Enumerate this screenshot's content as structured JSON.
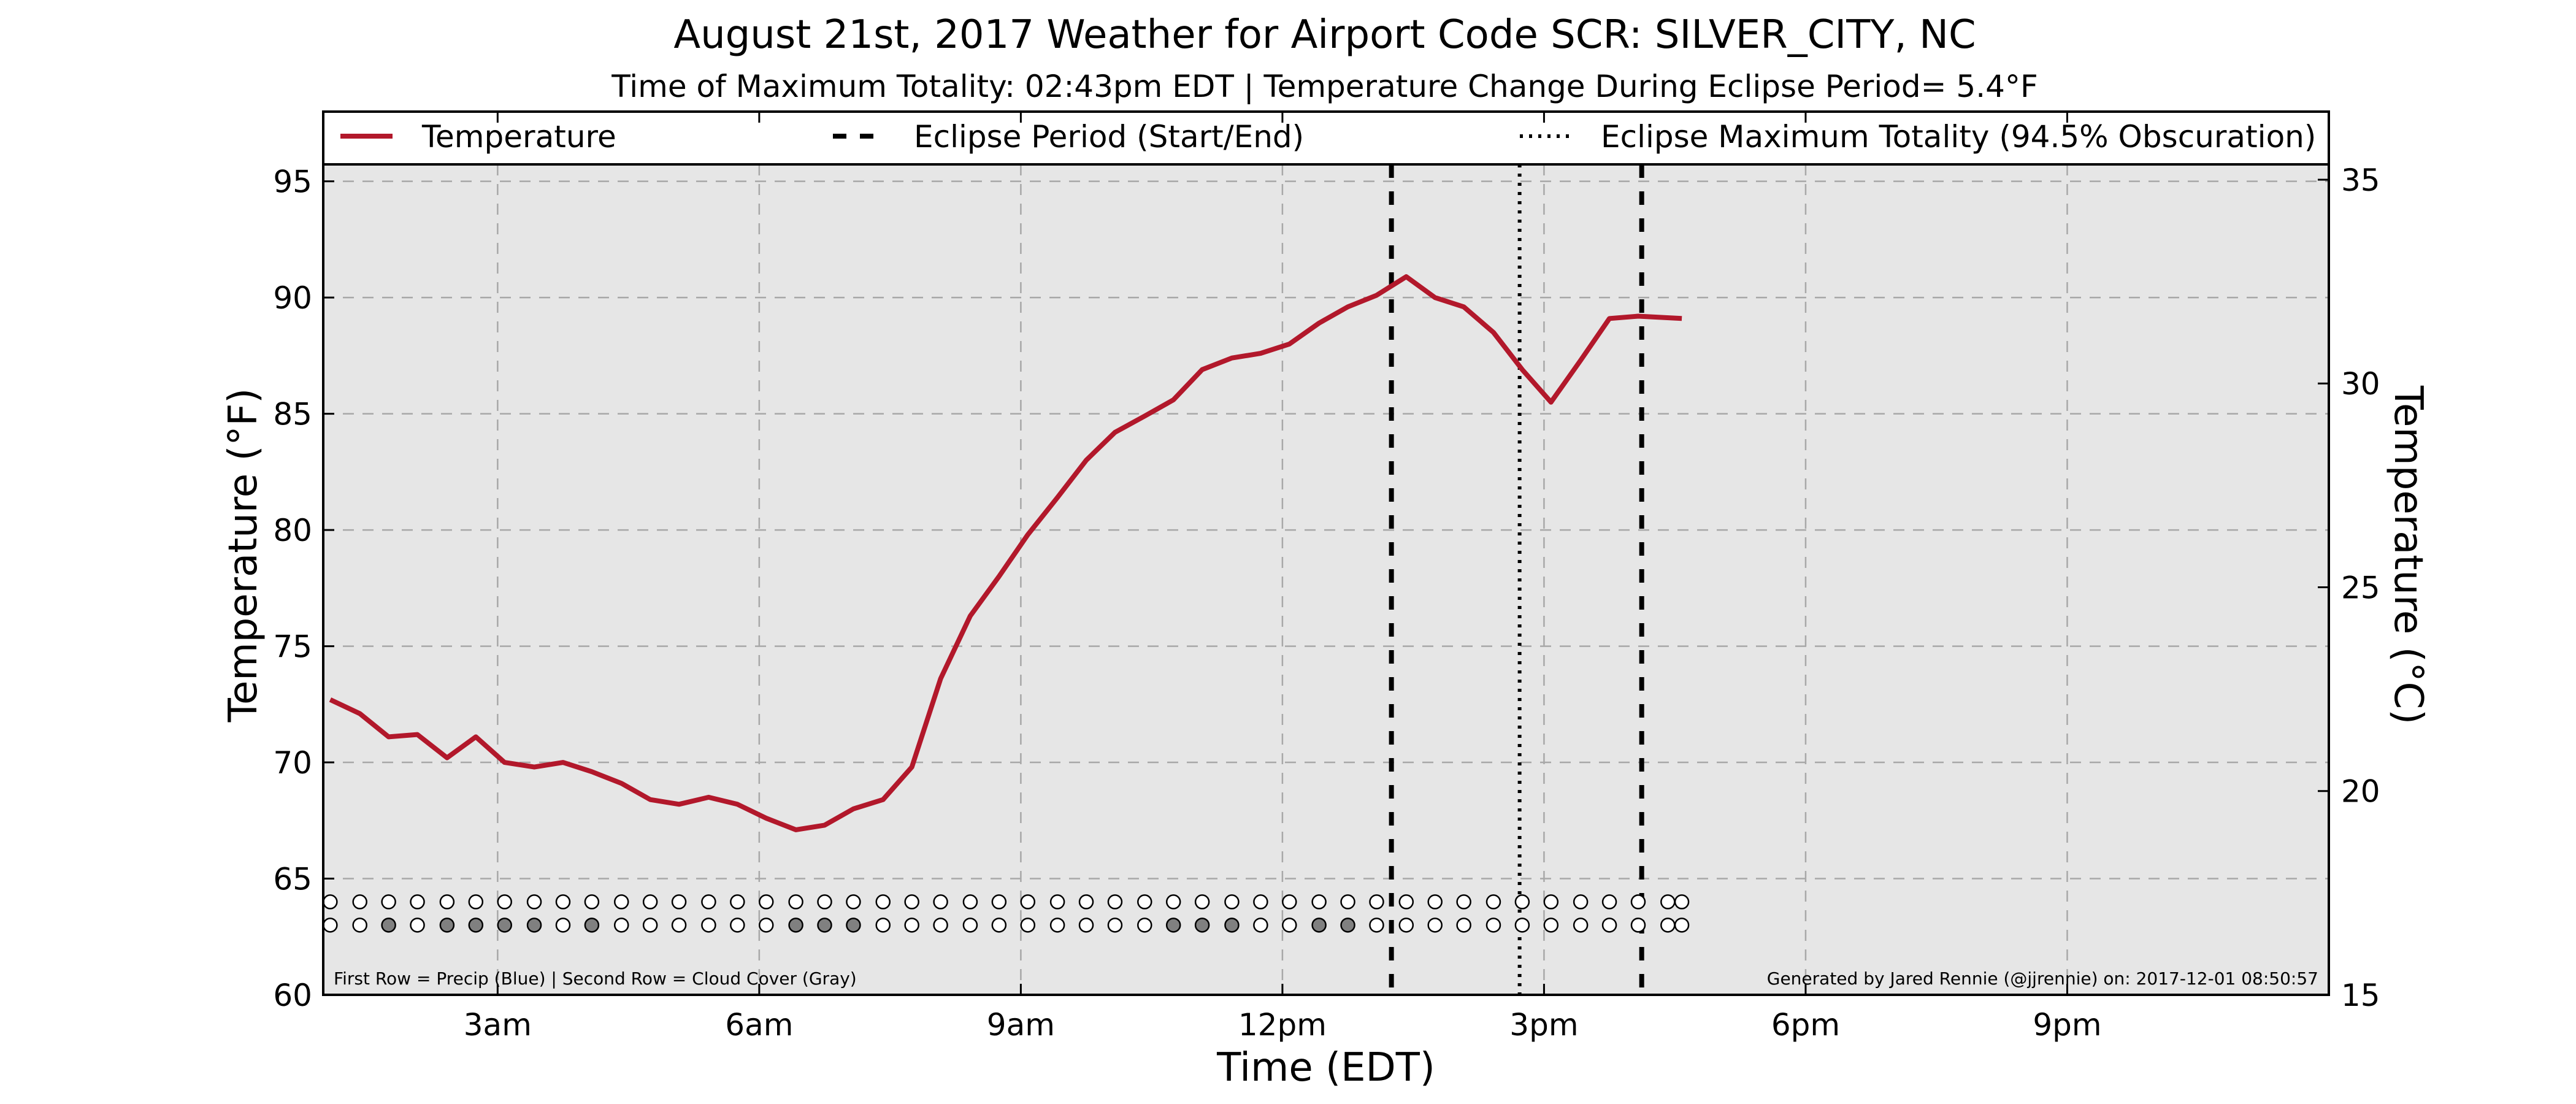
{
  "chart_data": {
    "type": "line",
    "title": "August 21st, 2017 Weather for Airport Code SCR: SILVER_CITY, NC",
    "subtitle": "Time of Maximum Totality: 02:43pm EDT | Temperature Change During Eclipse Period= 5.4°F",
    "xlabel": "Time (EDT)",
    "ylabel": "Temperature (°F)",
    "ylabel_right": "Temperature (°C)",
    "xlim": [
      1.0,
      24.0
    ],
    "ylim": [
      60,
      98
    ],
    "ylim_right_c": [
      15,
      36.67
    ],
    "x_ticks": [
      {
        "x": 3,
        "label": "3am"
      },
      {
        "x": 6,
        "label": "6am"
      },
      {
        "x": 9,
        "label": "9am"
      },
      {
        "x": 12,
        "label": "12pm"
      },
      {
        "x": 15,
        "label": "3pm"
      },
      {
        "x": 18,
        "label": "6pm"
      },
      {
        "x": 21,
        "label": "9pm"
      }
    ],
    "y_ticks": [
      60,
      65,
      70,
      75,
      80,
      85,
      90,
      95
    ],
    "y_ticks_right": [
      15,
      20,
      25,
      30,
      35
    ],
    "grid": true,
    "legend_position": "top",
    "legend": [
      {
        "label": "Temperature",
        "style": "solid"
      },
      {
        "label": "Eclipse Period (Start/End)",
        "style": "dashed"
      },
      {
        "label": "Eclipse Maximum Totality (94.5% Obscuration)",
        "style": "dotted"
      }
    ],
    "series": [
      {
        "name": "Temperature",
        "color": "#b2182b",
        "points": [
          [
            1.08,
            72.7
          ],
          [
            1.42,
            72.1
          ],
          [
            1.75,
            71.1
          ],
          [
            2.08,
            71.2
          ],
          [
            2.42,
            70.2
          ],
          [
            2.75,
            71.1
          ],
          [
            3.08,
            70.0
          ],
          [
            3.42,
            69.8
          ],
          [
            3.75,
            70.0
          ],
          [
            4.08,
            69.6
          ],
          [
            4.42,
            69.1
          ],
          [
            4.75,
            68.4
          ],
          [
            5.08,
            68.2
          ],
          [
            5.42,
            68.5
          ],
          [
            5.75,
            68.2
          ],
          [
            6.08,
            67.6
          ],
          [
            6.42,
            67.1
          ],
          [
            6.75,
            67.3
          ],
          [
            7.08,
            68.0
          ],
          [
            7.42,
            68.4
          ],
          [
            7.75,
            69.8
          ],
          [
            8.08,
            73.6
          ],
          [
            8.42,
            76.3
          ],
          [
            8.75,
            78.0
          ],
          [
            9.08,
            79.8
          ],
          [
            9.42,
            81.4
          ],
          [
            9.75,
            83.0
          ],
          [
            10.08,
            84.2
          ],
          [
            10.42,
            84.9
          ],
          [
            10.75,
            85.6
          ],
          [
            11.08,
            86.9
          ],
          [
            11.42,
            87.4
          ],
          [
            11.75,
            87.6
          ],
          [
            12.08,
            88.0
          ],
          [
            12.42,
            88.9
          ],
          [
            12.75,
            89.6
          ],
          [
            13.08,
            90.1
          ],
          [
            13.42,
            90.9
          ],
          [
            13.75,
            90.0
          ],
          [
            14.08,
            89.6
          ],
          [
            14.42,
            88.5
          ],
          [
            14.75,
            86.9
          ],
          [
            15.08,
            85.5
          ],
          [
            15.42,
            87.3
          ],
          [
            15.75,
            89.1
          ],
          [
            16.08,
            89.2
          ],
          [
            16.58,
            89.1
          ]
        ]
      }
    ],
    "eclipse_start": 13.25,
    "eclipse_end": 16.12,
    "eclipse_max": 14.72,
    "precip_row_y": 64.0,
    "cloud_row_y": 63.0,
    "dots_x": [
      1.08,
      1.42,
      1.75,
      2.08,
      2.42,
      2.75,
      3.08,
      3.42,
      3.75,
      4.08,
      4.42,
      4.75,
      5.08,
      5.42,
      5.75,
      6.08,
      6.42,
      6.75,
      7.08,
      7.42,
      7.75,
      8.08,
      8.42,
      8.75,
      9.08,
      9.42,
      9.75,
      10.08,
      10.42,
      10.75,
      11.08,
      11.42,
      11.75,
      12.08,
      12.42,
      12.75,
      13.08,
      13.42,
      13.75,
      14.08,
      14.42,
      14.75,
      15.08,
      15.42,
      15.75,
      16.08,
      16.42,
      16.58
    ],
    "cloud_gray_x": [
      1.75,
      2.42,
      2.75,
      3.08,
      3.42,
      4.08,
      6.42,
      6.75,
      7.08,
      10.75,
      11.08,
      11.42,
      12.42,
      12.75
    ],
    "footnote_left": "First Row = Precip (Blue) | Second Row = Cloud Cover (Gray)",
    "footnote_right": "Generated by Jared Rennie (@jjrennie) on: 2017-12-01 08:50:57",
    "colors": {
      "plot_bg": "#e6e6e6",
      "line": "#b2182b",
      "grid": "#a8a8a8",
      "cloud_gray": "#808080"
    }
  }
}
